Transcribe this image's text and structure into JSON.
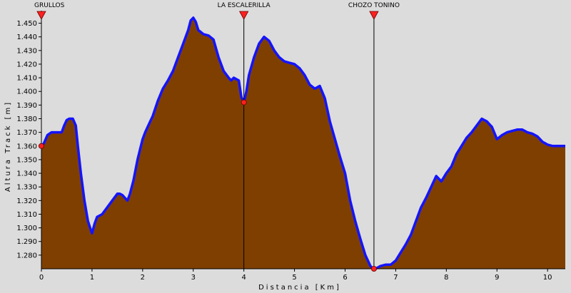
{
  "chart_data": {
    "type": "area",
    "xlabel": "Distancia  [Km]",
    "ylabel": "Altura Track  [m]",
    "xlim": [
      0,
      10.35
    ],
    "ylim": [
      1270,
      1455
    ],
    "x_ticks": [
      0,
      1,
      2,
      3,
      4,
      5,
      6,
      7,
      8,
      9,
      10
    ],
    "x_tick_labels": [
      "0",
      "1",
      "2",
      "3",
      "4",
      "5",
      "6",
      "7",
      "8",
      "9",
      "10"
    ],
    "y_ticks": [
      1280,
      1290,
      1300,
      1310,
      1320,
      1330,
      1340,
      1350,
      1360,
      1370,
      1380,
      1390,
      1400,
      1410,
      1420,
      1430,
      1440,
      1450
    ],
    "y_tick_labels": [
      "1.280",
      "1.290",
      "1.300",
      "1.310",
      "1.320",
      "1.330",
      "1.340",
      "1.350",
      "1.360",
      "1.370",
      "1.380",
      "1.390",
      "1.400",
      "1.410",
      "1.420",
      "1.430",
      "1.440",
      "1.450"
    ],
    "grid": false,
    "colors": {
      "fill": "#7f3f00",
      "line": "#1414ff",
      "plot_bg": "#dcdcdc",
      "marker": "#ff2020"
    },
    "series": [
      {
        "x": [
          0,
          0.05,
          0.12,
          0.2,
          0.3,
          0.4,
          0.45,
          0.5,
          0.55,
          0.62,
          0.68,
          0.72,
          0.78,
          0.85,
          0.92,
          0.98,
          1.0,
          1.05,
          1.1,
          1.2,
          1.3,
          1.4,
          1.5,
          1.55,
          1.6,
          1.65,
          1.7,
          1.75,
          1.82,
          1.9,
          2.0,
          2.05,
          2.1,
          2.2,
          2.3,
          2.4,
          2.5,
          2.6,
          2.7,
          2.8,
          2.9,
          2.95,
          3.0,
          3.05,
          3.1,
          3.2,
          3.3,
          3.4,
          3.5,
          3.6,
          3.7,
          3.75,
          3.8,
          3.9,
          3.95,
          4.0,
          4.05,
          4.1,
          4.2,
          4.3,
          4.4,
          4.5,
          4.6,
          4.7,
          4.8,
          4.9,
          5.0,
          5.1,
          5.2,
          5.3,
          5.4,
          5.5,
          5.6,
          5.7,
          5.8,
          5.9,
          6.0,
          6.1,
          6.2,
          6.3,
          6.4,
          6.5,
          6.55,
          6.6,
          6.7,
          6.8,
          6.9,
          7.0,
          7.1,
          7.2,
          7.3,
          7.4,
          7.5,
          7.6,
          7.7,
          7.8,
          7.9,
          8.0,
          8.1,
          8.2,
          8.3,
          8.4,
          8.5,
          8.6,
          8.7,
          8.8,
          8.85,
          8.9,
          9.0,
          9.1,
          9.2,
          9.3,
          9.4,
          9.5,
          9.6,
          9.7,
          9.8,
          9.9,
          10.0,
          10.1,
          10.2,
          10.35
        ],
        "y": [
          1360,
          1362,
          1368,
          1370,
          1370,
          1370,
          1375,
          1379,
          1380,
          1380,
          1375,
          1360,
          1340,
          1320,
          1305,
          1298,
          1296,
          1303,
          1308,
          1310,
          1315,
          1320,
          1325,
          1325,
          1324,
          1322,
          1320,
          1325,
          1335,
          1350,
          1365,
          1370,
          1374,
          1382,
          1393,
          1402,
          1408,
          1415,
          1425,
          1435,
          1445,
          1452,
          1454,
          1451,
          1445,
          1442,
          1441,
          1438,
          1425,
          1415,
          1410,
          1408,
          1410,
          1408,
          1396,
          1392,
          1400,
          1412,
          1425,
          1435,
          1440,
          1437,
          1430,
          1425,
          1422,
          1421,
          1420,
          1417,
          1412,
          1405,
          1402,
          1404,
          1395,
          1378,
          1365,
          1352,
          1340,
          1320,
          1305,
          1292,
          1280,
          1272,
          1270,
          1270,
          1272,
          1273,
          1273,
          1276,
          1282,
          1288,
          1295,
          1305,
          1315,
          1322,
          1330,
          1338,
          1334,
          1340,
          1345,
          1354,
          1360,
          1366,
          1370,
          1375,
          1380,
          1378,
          1376,
          1374,
          1365,
          1368,
          1370,
          1371,
          1372,
          1372,
          1370,
          1369,
          1367,
          1363,
          1361,
          1360,
          1360,
          1360
        ]
      }
    ],
    "waypoints": [
      {
        "label": "GRULLOS",
        "x": 0,
        "y": 1360
      },
      {
        "label": "LA ESCALERILLA",
        "x": 4.0,
        "y": 1392
      },
      {
        "label": "CHOZO TONINO",
        "x": 6.57,
        "y": 1270
      }
    ]
  }
}
